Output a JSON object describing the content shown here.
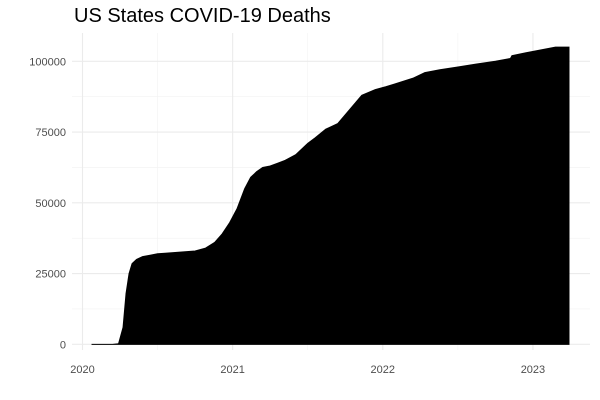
{
  "chart_data": {
    "type": "area",
    "title": "US States COVID-19 Deaths",
    "xlabel": "",
    "ylabel": "",
    "xlim": [
      2019.93,
      2023.38
    ],
    "ylim": [
      -2000,
      110000
    ],
    "x_ticks": [
      2020,
      2021,
      2022,
      2023
    ],
    "x_tick_labels": [
      "2020",
      "2021",
      "2022",
      "2023"
    ],
    "y_ticks": [
      0,
      25000,
      50000,
      75000,
      100000
    ],
    "y_tick_labels": [
      "0",
      "25000",
      "50000",
      "75000",
      "100000"
    ],
    "grid": true,
    "fill_color": "#000000",
    "series": [
      {
        "x": [
          2020.06,
          2020.1,
          2020.15,
          2020.2,
          2020.24,
          2020.27,
          2020.29,
          2020.31,
          2020.33,
          2020.36,
          2020.4,
          2020.45,
          2020.5,
          2020.55,
          2020.65,
          2020.75,
          2020.82,
          2020.88,
          2020.93,
          2020.98,
          2021.03,
          2021.08,
          2021.12,
          2021.16,
          2021.2,
          2021.25,
          2021.3,
          2021.35,
          2021.42,
          2021.5,
          2021.55,
          2021.62,
          2021.7,
          2021.78,
          2021.86,
          2021.95,
          2022.02,
          2022.08,
          2022.14,
          2022.2,
          2022.28,
          2022.38,
          2022.5,
          2022.62,
          2022.75,
          2022.85,
          2022.86,
          2022.95,
          2023.05,
          2023.15,
          2023.2,
          2023.24
        ],
        "y": [
          0,
          0,
          0,
          0,
          200,
          6000,
          18000,
          25000,
          28500,
          30000,
          31000,
          31500,
          32000,
          32200,
          32600,
          33000,
          34000,
          36000,
          39000,
          43000,
          48000,
          55000,
          59000,
          61000,
          62500,
          63000,
          64000,
          65000,
          67000,
          71000,
          73000,
          76000,
          78000,
          83000,
          88000,
          90000,
          91000,
          92000,
          93000,
          94000,
          96000,
          97000,
          98000,
          99000,
          100000,
          101000,
          102000,
          103000,
          104000,
          105000,
          105000,
          105000
        ]
      }
    ]
  }
}
